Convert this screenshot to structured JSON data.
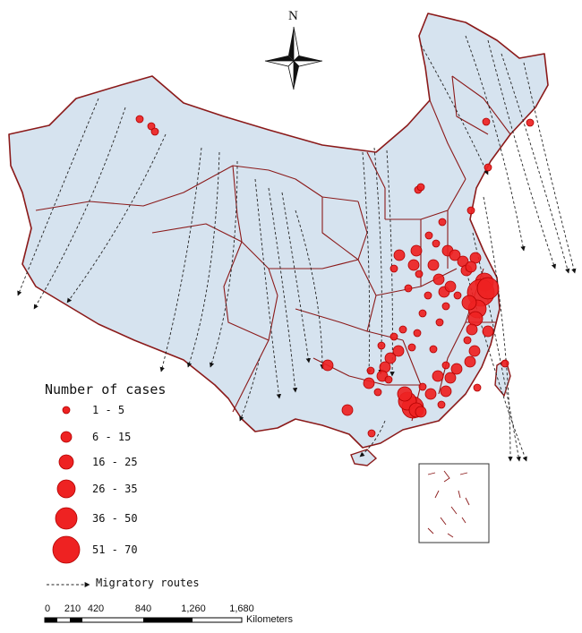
{
  "compass": {
    "label": "N"
  },
  "legend": {
    "title": "Number of cases",
    "classes": [
      {
        "label": "1 - 5",
        "min": 1,
        "max": 5
      },
      {
        "label": "6 - 15",
        "min": 6,
        "max": 15
      },
      {
        "label": "16 - 25",
        "min": 16,
        "max": 25
      },
      {
        "label": "26 - 35",
        "min": 26,
        "max": 35
      },
      {
        "label": "36 - 50",
        "min": 36,
        "max": 50
      },
      {
        "label": "51 - 70",
        "min": 51,
        "max": 70
      }
    ],
    "route_label": "Migratory routes"
  },
  "scale_bar": {
    "ticks": [
      "0",
      "210",
      "420",
      "840",
      "1,260",
      "1,680"
    ],
    "unit": "Kilometers"
  },
  "colors": {
    "land": "#d6e3ef",
    "border": "#8b1a1a",
    "marker": "#ee2222",
    "marker_stroke": "#b00000",
    "route": "#222222"
  }
}
